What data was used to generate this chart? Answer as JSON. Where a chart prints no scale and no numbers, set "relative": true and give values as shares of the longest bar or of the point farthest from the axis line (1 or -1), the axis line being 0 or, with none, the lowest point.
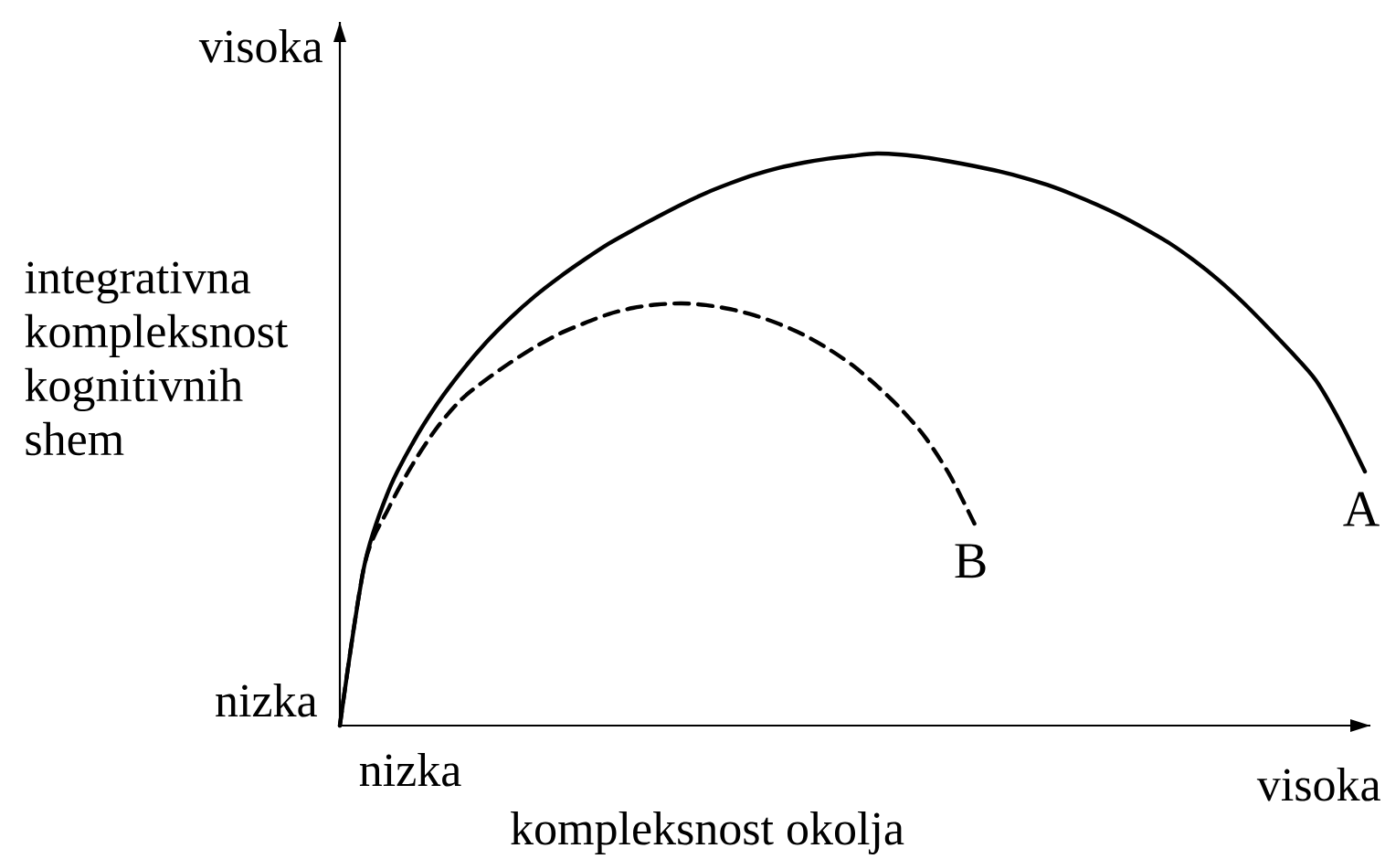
{
  "chart_data": {
    "type": "line",
    "relative": true,
    "xlabel": "kompleksnost okolja",
    "ylabel": "integrativna kompleksnost kognitivnih shem",
    "annotations": [
      "visoka",
      "nizka",
      "nizka",
      "visoka"
    ],
    "categories": [
      null,
      null,
      null,
      null,
      null,
      null,
      null,
      null,
      null,
      null,
      null,
      null,
      null,
      null,
      null,
      null,
      null,
      null,
      null,
      null,
      null,
      null,
      null,
      null,
      null,
      null,
      null,
      null,
      null,
      null,
      null,
      null,
      null,
      null,
      null,
      null,
      null,
      null,
      null,
      null,
      null,
      null,
      null
    ],
    "series": [
      {
        "name": "A",
        "color": "#000000",
        "line_style": "solid",
        "values": [
          0,
          0.279,
          0.411,
          0.495,
          0.563,
          0.62,
          0.67,
          0.713,
          0.751,
          0.784,
          0.814,
          0.842,
          0.866,
          0.889,
          0.911,
          0.931,
          0.948,
          0.963,
          0.975,
          0.984,
          0.991,
          0.996,
          1.0,
          0.998,
          0.993,
          0.986,
          0.978,
          0.969,
          0.958,
          0.945,
          0.929,
          0.911,
          0.891,
          0.868,
          0.843,
          0.813,
          0.779,
          0.74,
          0.697,
          0.652,
          0.603,
          0.53,
          0.444
        ]
      },
      {
        "name": "B",
        "color": "#000000",
        "line_style": "dashed",
        "values": [
          0,
          0.279,
          0.38,
          0.458,
          0.522,
          0.571,
          0.605,
          0.635,
          0.662,
          0.685,
          0.703,
          0.719,
          0.73,
          0.736,
          0.738,
          0.735,
          0.728,
          0.717,
          0.702,
          0.683,
          0.659,
          0.63,
          0.594,
          0.553,
          0.503,
          0.437,
          0.353,
          null,
          null,
          null,
          null,
          null,
          null,
          null,
          null,
          null,
          null,
          null,
          null,
          null,
          null,
          null,
          null
        ]
      }
    ]
  }
}
